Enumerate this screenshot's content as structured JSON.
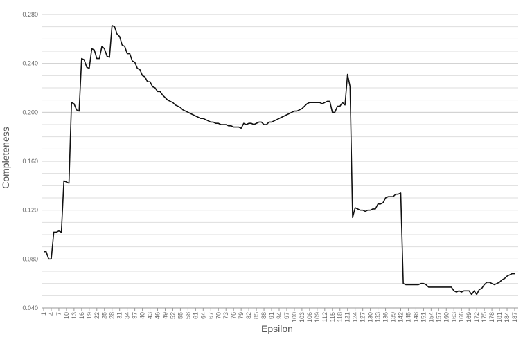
{
  "chart_data": {
    "type": "line",
    "xlabel": "Epsilon",
    "ylabel": "Completeness",
    "color": "#111111",
    "grid": true,
    "xlim": [
      1,
      187
    ],
    "ylim": [
      0.04,
      0.28
    ],
    "yticks": [
      {
        "value": 0.04,
        "label": "0.040"
      },
      {
        "value": 0.08,
        "label": "0.080"
      },
      {
        "value": 0.12,
        "label": "0.120"
      },
      {
        "value": 0.16,
        "label": "0.160"
      },
      {
        "value": 0.2,
        "label": "0.200"
      },
      {
        "value": 0.24,
        "label": "0.240"
      },
      {
        "value": 0.28,
        "label": "0.280"
      }
    ],
    "grid_yticks": [
      0.04,
      0.05,
      0.06,
      0.07,
      0.08,
      0.09,
      0.1,
      0.11,
      0.12,
      0.13,
      0.14,
      0.15,
      0.16,
      0.17,
      0.18,
      0.19,
      0.2,
      0.21,
      0.22,
      0.23,
      0.24,
      0.25,
      0.26,
      0.27,
      0.28
    ],
    "xticks": [
      1,
      4,
      7,
      10,
      13,
      16,
      19,
      22,
      25,
      28,
      31,
      34,
      37,
      40,
      43,
      46,
      49,
      52,
      55,
      58,
      61,
      64,
      67,
      70,
      73,
      76,
      79,
      82,
      85,
      88,
      91,
      94,
      97,
      100,
      103,
      106,
      109,
      112,
      115,
      118,
      121,
      124,
      127,
      130,
      133,
      136,
      139,
      142,
      145,
      148,
      151,
      154,
      157,
      160,
      163,
      166,
      169,
      172,
      175,
      178,
      181,
      184,
      187
    ],
    "x": [
      1,
      2,
      3,
      4,
      5,
      6,
      7,
      8,
      9,
      10,
      11,
      12,
      13,
      14,
      15,
      16,
      17,
      18,
      19,
      20,
      21,
      22,
      23,
      24,
      25,
      26,
      27,
      28,
      29,
      30,
      31,
      32,
      33,
      34,
      35,
      36,
      37,
      38,
      39,
      40,
      41,
      42,
      43,
      44,
      45,
      46,
      47,
      48,
      49,
      50,
      51,
      52,
      53,
      54,
      55,
      56,
      57,
      58,
      59,
      60,
      61,
      62,
      63,
      64,
      65,
      66,
      67,
      68,
      69,
      70,
      71,
      72,
      73,
      74,
      75,
      76,
      77,
      78,
      79,
      80,
      81,
      82,
      83,
      84,
      85,
      86,
      87,
      88,
      89,
      90,
      91,
      92,
      93,
      94,
      95,
      96,
      97,
      98,
      99,
      100,
      101,
      102,
      103,
      104,
      105,
      106,
      107,
      108,
      109,
      110,
      111,
      112,
      113,
      114,
      115,
      116,
      117,
      118,
      119,
      120,
      121,
      122,
      123,
      124,
      125,
      126,
      127,
      128,
      129,
      130,
      131,
      132,
      133,
      134,
      135,
      136,
      137,
      138,
      139,
      140,
      141,
      142,
      143,
      144,
      145,
      146,
      147,
      148,
      149,
      150,
      151,
      152,
      153,
      154,
      155,
      156,
      157,
      158,
      159,
      160,
      161,
      162,
      163,
      164,
      165,
      166,
      167,
      168,
      169,
      170,
      171,
      172,
      173,
      174,
      175,
      176,
      177,
      178,
      179,
      180,
      181,
      182,
      183,
      184,
      185,
      186,
      187
    ],
    "values": [
      0.086,
      0.086,
      0.08,
      0.08,
      0.102,
      0.102,
      0.103,
      0.102,
      0.144,
      0.143,
      0.142,
      0.208,
      0.207,
      0.202,
      0.201,
      0.244,
      0.243,
      0.237,
      0.236,
      0.252,
      0.251,
      0.244,
      0.244,
      0.254,
      0.252,
      0.246,
      0.245,
      0.271,
      0.27,
      0.264,
      0.262,
      0.255,
      0.254,
      0.248,
      0.248,
      0.242,
      0.241,
      0.236,
      0.235,
      0.23,
      0.229,
      0.225,
      0.225,
      0.221,
      0.22,
      0.217,
      0.217,
      0.214,
      0.212,
      0.21,
      0.209,
      0.208,
      0.206,
      0.205,
      0.204,
      0.202,
      0.201,
      0.2,
      0.199,
      0.198,
      0.197,
      0.196,
      0.195,
      0.195,
      0.194,
      0.193,
      0.192,
      0.192,
      0.191,
      0.191,
      0.19,
      0.19,
      0.19,
      0.189,
      0.189,
      0.188,
      0.188,
      0.188,
      0.187,
      0.191,
      0.19,
      0.191,
      0.191,
      0.19,
      0.191,
      0.192,
      0.192,
      0.19,
      0.19,
      0.192,
      0.192,
      0.193,
      0.194,
      0.195,
      0.196,
      0.197,
      0.198,
      0.199,
      0.2,
      0.201,
      0.201,
      0.202,
      0.203,
      0.205,
      0.207,
      0.208,
      0.208,
      0.208,
      0.208,
      0.208,
      0.207,
      0.208,
      0.209,
      0.209,
      0.2,
      0.2,
      0.205,
      0.205,
      0.208,
      0.206,
      0.231,
      0.221,
      0.114,
      0.122,
      0.121,
      0.12,
      0.12,
      0.119,
      0.12,
      0.12,
      0.121,
      0.121,
      0.125,
      0.125,
      0.126,
      0.13,
      0.131,
      0.131,
      0.131,
      0.133,
      0.133,
      0.134,
      0.06,
      0.059,
      0.059,
      0.059,
      0.059,
      0.059,
      0.059,
      0.06,
      0.06,
      0.059,
      0.057,
      0.057,
      0.057,
      0.057,
      0.057,
      0.057,
      0.057,
      0.057,
      0.057,
      0.057,
      0.054,
      0.053,
      0.054,
      0.053,
      0.054,
      0.054,
      0.054,
      0.051,
      0.054,
      0.051,
      0.055,
      0.056,
      0.059,
      0.061,
      0.061,
      0.06,
      0.059,
      0.06,
      0.061,
      0.063,
      0.064,
      0.066,
      0.067,
      0.068,
      0.068
    ]
  }
}
